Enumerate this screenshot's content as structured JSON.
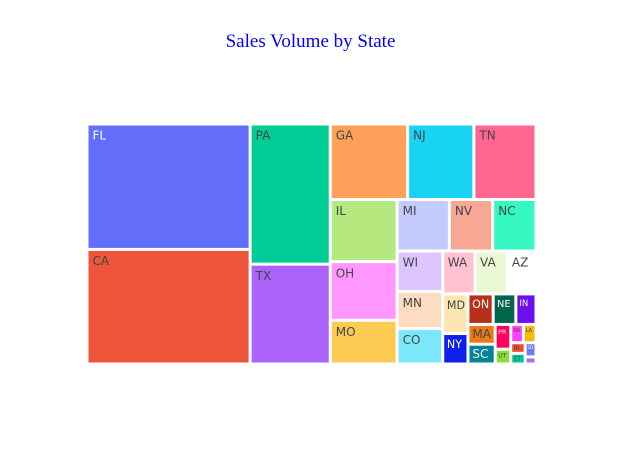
{
  "chart_data": {
    "type": "treemap",
    "title": "Sales Volume by State",
    "tiles": [
      {
        "label": "FL",
        "value": 266,
        "color": "#636efa",
        "text_color": "#ffffff"
      },
      {
        "label": "CA",
        "value": 243,
        "color": "#ef553b",
        "text_color": "#444444"
      },
      {
        "label": "PA",
        "value": 146,
        "color": "#00cc96",
        "text_color": "#444444"
      },
      {
        "label": "TX",
        "value": 104,
        "color": "#ab63fa",
        "text_color": "#444444"
      },
      {
        "label": "GA",
        "value": 76,
        "color": "#ffa15a",
        "text_color": "#444444"
      },
      {
        "label": "NJ",
        "value": 65,
        "color": "#19d3f3",
        "text_color": "#444444"
      },
      {
        "label": "TN",
        "value": 61,
        "color": "#ff6692",
        "text_color": "#444444"
      },
      {
        "label": "IL",
        "value": 54,
        "color": "#b6e880",
        "text_color": "#444444"
      },
      {
        "label": "OH",
        "value": 51,
        "color": "#ff97ff",
        "text_color": "#444444"
      },
      {
        "label": "MO",
        "value": 38,
        "color": "#fecb52",
        "text_color": "#444444"
      },
      {
        "label": "MI",
        "value": 35,
        "color": "#c5cafd",
        "text_color": "#444444"
      },
      {
        "label": "NV",
        "value": 29,
        "color": "#f6a895",
        "text_color": "#444444"
      },
      {
        "label": "NC",
        "value": 29,
        "color": "#34f7c2",
        "text_color": "#444444"
      },
      {
        "label": "WI",
        "value": 24,
        "color": "#ddc6fd",
        "text_color": "#444444"
      },
      {
        "label": "MN",
        "value": 22,
        "color": "#ffdbc2",
        "text_color": "#444444"
      },
      {
        "label": "CO",
        "value": 21,
        "color": "#7ae8fa",
        "text_color": "#444444"
      },
      {
        "label": "WA",
        "value": 18,
        "color": "#ffc2d3",
        "text_color": "#444444"
      },
      {
        "label": "VA",
        "value": 18,
        "color": "#eaf8d4",
        "text_color": "#444444"
      },
      {
        "label": "AZ",
        "value": 16,
        "color": "#ffffff",
        "text_color": "#444444"
      },
      {
        "label": "MD",
        "value": 13,
        "color": "#fee6b1",
        "text_color": "#444444"
      },
      {
        "label": "NY",
        "value": 10,
        "color": "#0d1fed",
        "text_color": "#ffffff"
      },
      {
        "label": "ON",
        "value": 10,
        "color": "#b7311a",
        "text_color": "#ffffff"
      },
      {
        "label": "NE",
        "value": 9,
        "color": "#00664b",
        "text_color": "#ffffff"
      },
      {
        "label": "IN",
        "value": 8,
        "color": "#6e0ded",
        "text_color": "#ffffff"
      },
      {
        "label": "MA",
        "value": 7,
        "color": "#ed7914",
        "text_color": "#444444"
      },
      {
        "label": "SC",
        "value": 7,
        "color": "#00839b",
        "text_color": "#ffffff"
      },
      {
        "label": "PR",
        "value": 5,
        "color": "#ff005a",
        "text_color": "#ffffff"
      },
      {
        "label": "UT",
        "value": 3,
        "color": "#8cdc3a",
        "text_color": "#444444"
      },
      {
        "label": "NS",
        "value": 3,
        "color": "#ff3fff",
        "text_color": "#444444"
      },
      {
        "label": "LA",
        "value": 3,
        "color": "#f5b80e",
        "text_color": "#444444"
      },
      {
        "label": "RI",
        "value": 2,
        "color": "#ef4d2c",
        "text_color": "#444444"
      },
      {
        "label": "CT",
        "value": 2,
        "color": "#00c896",
        "text_color": "#444444"
      },
      {
        "label": "SD",
        "value": 2,
        "color": "#6f7cf6",
        "text_color": "#ffffff"
      },
      {
        "label": "",
        "value": 1,
        "color": "#ae6bf6",
        "text_color": "#444444"
      }
    ]
  }
}
